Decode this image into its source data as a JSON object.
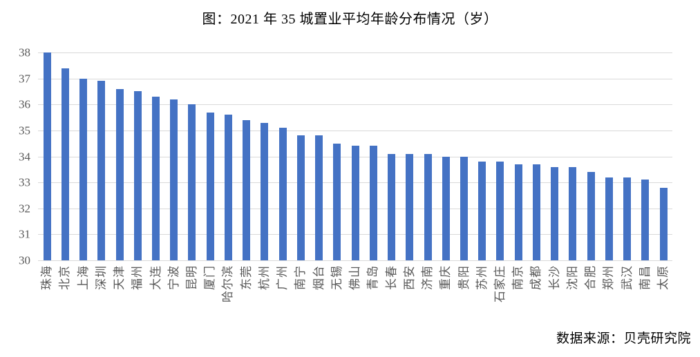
{
  "title": "图：2021 年 35 城置业平均年龄分布情况（岁）",
  "source": "数据来源：贝壳研究院",
  "chart_data": {
    "type": "bar",
    "title": "图：2021 年 35 城置业平均年龄分布情况（岁）",
    "categories": [
      "珠海",
      "北京",
      "上海",
      "深圳",
      "天津",
      "福州",
      "大连",
      "宁波",
      "昆明",
      "厦门",
      "哈尔滨",
      "东莞",
      "杭州",
      "广州",
      "南宁",
      "烟台",
      "无锡",
      "佛山",
      "青岛",
      "长春",
      "西安",
      "济南",
      "重庆",
      "贵阳",
      "苏州",
      "石家庄",
      "南京",
      "成都",
      "长沙",
      "沈阳",
      "合肥",
      "郑州",
      "武汉",
      "南昌",
      "太原"
    ],
    "values": [
      38.0,
      37.4,
      37.0,
      36.9,
      36.6,
      36.5,
      36.3,
      36.2,
      36.0,
      35.7,
      35.6,
      35.4,
      35.3,
      35.1,
      34.8,
      34.8,
      34.5,
      34.4,
      34.4,
      34.1,
      34.1,
      34.1,
      34.0,
      34.0,
      33.8,
      33.8,
      33.7,
      33.7,
      33.6,
      33.6,
      33.4,
      33.2,
      33.2,
      33.1,
      32.8
    ],
    "xlabel": "",
    "ylabel": "",
    "ylim": [
      30,
      38
    ],
    "yticks": [
      30,
      31,
      32,
      33,
      34,
      35,
      36,
      37,
      38
    ],
    "grid": true,
    "legend": false,
    "x_label_rotation_deg": 90,
    "bar_color": "#4472C4",
    "gridline_color": "#D9D9D9",
    "tick_label_color": "#595959",
    "background_color": "#FFFFFF",
    "source_note": "数据来源：贝壳研究院"
  }
}
